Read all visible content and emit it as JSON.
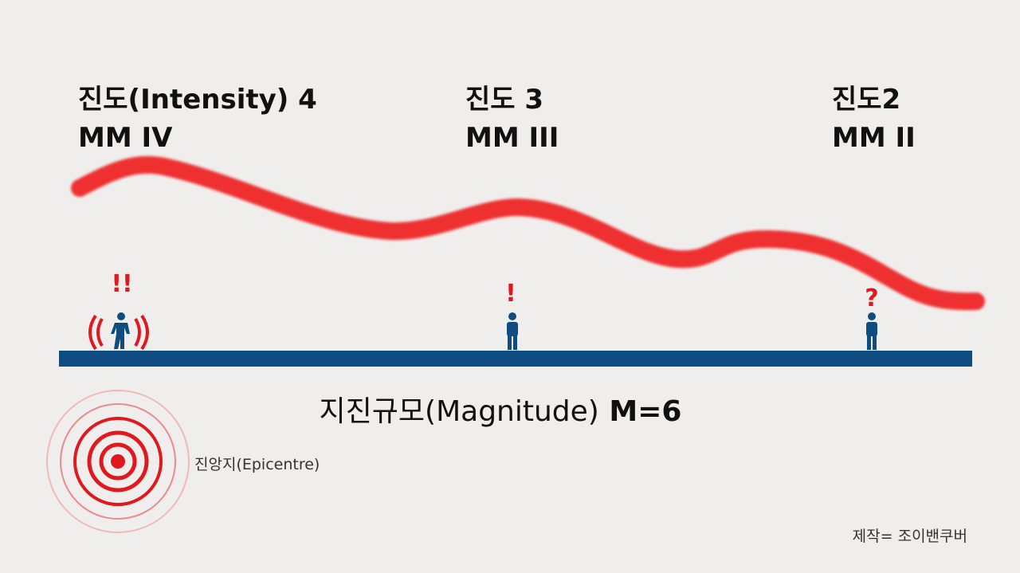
{
  "stations": [
    {
      "intensity": "진도(Intensity) 4",
      "scale": "MM IV",
      "reaction": "!!"
    },
    {
      "intensity": "진도 3",
      "scale": "MM III",
      "reaction": "!"
    },
    {
      "intensity": "진도2",
      "scale": "MM II",
      "reaction": "?"
    }
  ],
  "magnitude": {
    "label": "지진규모(Magnitude)",
    "value": "M=6"
  },
  "epicentre": "진앙지(Epicentre)",
  "credit": "제작= 조이밴쿠버"
}
